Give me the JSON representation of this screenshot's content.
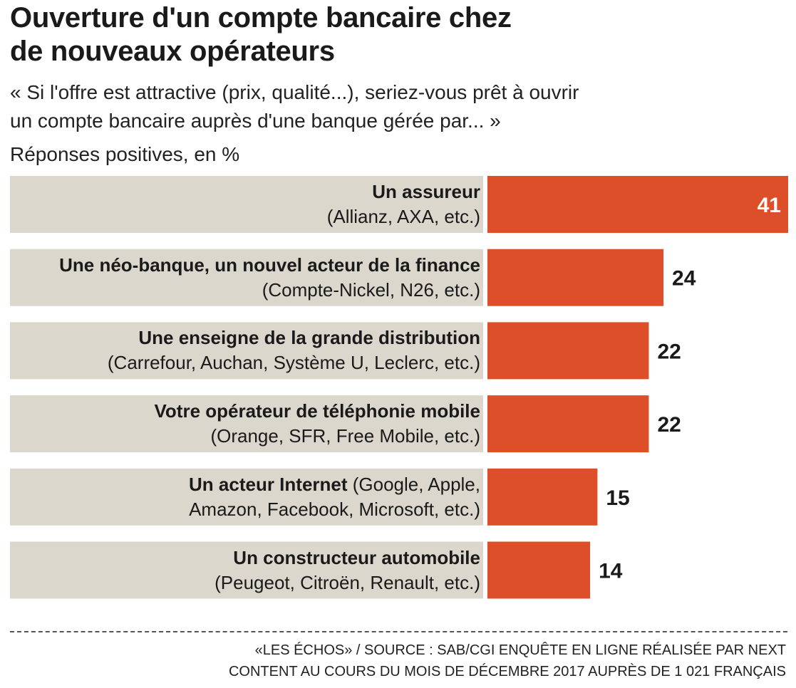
{
  "header": {
    "title_line1": "Ouverture d'un compte bancaire chez",
    "title_line2": "de nouveaux opérateurs",
    "subtitle_line1": "« Si l'offre est attractive (prix, qualité...), seriez-vous prêt à ouvrir",
    "subtitle_line2": "un compte bancaire auprès d'une banque gérée par... »",
    "units": "Réponses positives, en %"
  },
  "chart_data": {
    "type": "bar",
    "orientation": "horizontal",
    "categories": [
      "Un assureur (Allianz, AXA, etc.)",
      "Une néo-banque, un nouvel acteur de la finance (Compte-Nickel, N26, etc.)",
      "Une enseigne de la grande distribution (Carrefour, Auchan, Système U, Leclerc, etc.)",
      "Votre opérateur de téléphonie mobile (Orange, SFR, Free Mobile, etc.)",
      "Un acteur Internet (Google, Apple, Amazon, Facebook, Microsoft, etc.)",
      "Un constructeur automobile (Peugeot, Citroën, Renault, etc.)"
    ],
    "values": [
      41,
      24,
      22,
      22,
      15,
      14
    ],
    "xlim": [
      0,
      41
    ],
    "grid": false,
    "legend": "none"
  },
  "rows": [
    {
      "bold": "Un assureur",
      "line1_rest": "",
      "line2": "(Allianz, AXA, etc.)",
      "value_label": "41"
    },
    {
      "bold": "Une néo-banque, un nouvel acteur de la finance",
      "line1_rest": "",
      "line2": "(Compte-Nickel, N26, etc.)",
      "value_label": "24"
    },
    {
      "bold": "Une enseigne de la grande distribution",
      "line1_rest": "",
      "line2": "(Carrefour, Auchan, Système U, Leclerc, etc.)",
      "value_label": "22"
    },
    {
      "bold": "Votre opérateur de téléphonie mobile",
      "line1_rest": "",
      "line2": "(Orange, SFR, Free Mobile, etc.)",
      "value_label": "22"
    },
    {
      "bold": "Un acteur Internet",
      "line1_rest": " (Google, Apple,",
      "line2": "Amazon, Facebook, Microsoft, etc.)",
      "value_label": "15"
    },
    {
      "bold": "Un constructeur automobile",
      "line1_rest": "",
      "line2": "(Peugeot, Citroën, Renault, etc.)",
      "value_label": "14"
    }
  ],
  "colors": {
    "bar": "#dd4f28",
    "label_band": "#dbd7cd",
    "value_inside": "#ffffff",
    "value_outside": "#1a1a1a"
  },
  "footer": {
    "source_line1": "«LES ÉCHOS»  / SOURCE : SAB/CGI ENQUÊTE EN LIGNE RÉALISÉE PAR NEXT",
    "source_line2": "CONTENT AU COURS DU MOIS DE DÉCEMBRE 2017 AUPRÈS DE 1 021 FRANÇAIS"
  }
}
